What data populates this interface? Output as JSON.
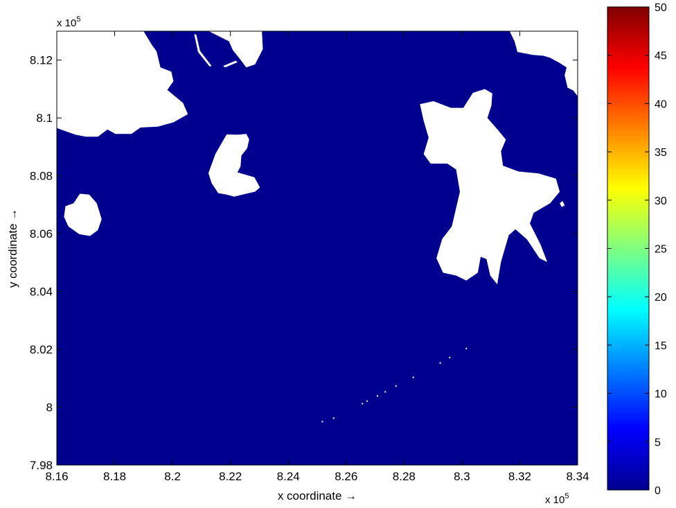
{
  "chart_data": [
    {
      "type": "heatmap",
      "title": "",
      "xlabel": "x coordinate →",
      "ylabel": "y coordinate →",
      "x_multiplier": "x 10",
      "x_multiplier_exp": "5",
      "y_multiplier": "x 10",
      "y_multiplier_exp": "5",
      "xlim": [
        8.16,
        8.34
      ],
      "ylim": [
        7.98,
        8.13
      ],
      "x_ticks": [
        "8.16",
        "8.18",
        "8.2",
        "8.22",
        "8.24",
        "8.26",
        "8.28",
        "8.3",
        "8.32",
        "8.34"
      ],
      "x_tick_values": [
        8.16,
        8.18,
        8.2,
        8.22,
        8.24,
        8.26,
        8.28,
        8.3,
        8.32,
        8.34
      ],
      "y_ticks": [
        "7.98",
        "8",
        "8.02",
        "8.04",
        "8.06",
        "8.08",
        "8.1",
        "8.12"
      ],
      "y_tick_values": [
        7.98,
        8.0,
        8.02,
        8.04,
        8.06,
        8.08,
        8.1,
        8.12
      ],
      "field_value": 0,
      "field_color": "#00008f",
      "land_color": "#ffffff",
      "colorbar": {
        "min": 0,
        "max": 50,
        "ticks": [
          "0",
          "5",
          "10",
          "15",
          "20",
          "25",
          "30",
          "35",
          "40",
          "45",
          "50"
        ],
        "tick_values": [
          0,
          5,
          10,
          15,
          20,
          25,
          30,
          35,
          40,
          45,
          50
        ],
        "colormap": "jet"
      },
      "land_masses": [
        {
          "name": "northwest-coast",
          "points": [
            [
              8.16,
              8.13
            ],
            [
              8.19,
              8.13
            ],
            [
              8.1927,
              8.1255
            ],
            [
              8.1945,
              8.123
            ],
            [
              8.1958,
              8.1175
            ],
            [
              8.1996,
              8.116
            ],
            [
              8.2003,
              8.1127
            ],
            [
              8.1982,
              8.1097
            ],
            [
              8.2036,
              8.1052
            ],
            [
              8.2053,
              8.1013
            ],
            [
              8.2003,
              8.0985
            ],
            [
              8.1949,
              8.097
            ],
            [
              8.1889,
              8.0967
            ],
            [
              8.1858,
              8.0945
            ],
            [
              8.1803,
              8.0945
            ],
            [
              8.1775,
              8.096
            ],
            [
              8.1742,
              8.0935
            ],
            [
              8.17,
              8.0935
            ],
            [
              8.1665,
              8.0942
            ],
            [
              8.1628,
              8.0955
            ],
            [
              8.16,
              8.0965
            ]
          ]
        },
        {
          "name": "north-land-2",
          "points": [
            [
              8.2125,
              8.13
            ],
            [
              8.2309,
              8.13
            ],
            [
              8.2312,
              8.1238
            ],
            [
              8.2285,
              8.1185
            ],
            [
              8.2255,
              8.1175
            ],
            [
              8.2232,
              8.1205
            ],
            [
              8.2208,
              8.1235
            ],
            [
              8.2195,
              8.1265
            ]
          ]
        },
        {
          "name": "north-sliver",
          "points": [
            [
              8.2075,
              8.129
            ],
            [
              8.2082,
              8.1288
            ],
            [
              8.2095,
              8.1232
            ],
            [
              8.2135,
              8.118
            ],
            [
              8.2128,
              8.1178
            ],
            [
              8.2088,
              8.1228
            ]
          ]
        },
        {
          "name": "north-islet",
          "points": [
            [
              8.2175,
              8.118
            ],
            [
              8.2218,
              8.1198
            ],
            [
              8.2225,
              8.1193
            ],
            [
              8.2182,
              8.1175
            ]
          ]
        },
        {
          "name": "northeast-coast",
          "points": [
            [
              8.3165,
              8.13
            ],
            [
              8.34,
              8.13
            ],
            [
              8.34,
              8.1075
            ],
            [
              8.3385,
              8.1095
            ],
            [
              8.3365,
              8.1105
            ],
            [
              8.3355,
              8.1148
            ],
            [
              8.3362,
              8.1175
            ],
            [
              8.3335,
              8.1192
            ],
            [
              8.3305,
              8.1208
            ],
            [
              8.3282,
              8.1215
            ],
            [
              8.3245,
              8.1218
            ],
            [
              8.3192,
              8.1228
            ],
            [
              8.3182,
              8.1265
            ]
          ]
        },
        {
          "name": "central-island",
          "points": [
            [
              8.2197,
              8.0803
            ],
            [
              8.2222,
              8.0808
            ],
            [
              8.2235,
              8.0832
            ],
            [
              8.2238,
              8.087
            ],
            [
              8.2258,
              8.0895
            ],
            [
              8.2265,
              8.0926
            ],
            [
              8.2255,
              8.0945
            ],
            [
              8.2225,
              8.0942
            ],
            [
              8.2187,
              8.0943
            ],
            [
              8.2172,
              8.0917
            ],
            [
              8.2148,
              8.0875
            ],
            [
              8.2124,
              8.0809
            ],
            [
              8.2135,
              8.0775
            ],
            [
              8.2158,
              8.074
            ],
            [
              8.2187,
              8.0735
            ],
            [
              8.2213,
              8.0728
            ],
            [
              8.2255,
              8.0738
            ],
            [
              8.2285,
              8.0745
            ],
            [
              8.2302,
              8.076
            ],
            [
              8.2283,
              8.0795
            ],
            [
              8.2225,
              8.0812
            ]
          ]
        },
        {
          "name": "west-island",
          "points": [
            [
              8.1625,
              8.0658
            ],
            [
              8.164,
              8.0625
            ],
            [
              8.1678,
              8.0598
            ],
            [
              8.1715,
              8.0592
            ],
            [
              8.1742,
              8.0612
            ],
            [
              8.1755,
              8.065
            ],
            [
              8.1738,
              8.0705
            ],
            [
              8.1712,
              8.0735
            ],
            [
              8.168,
              8.0738
            ],
            [
              8.1658,
              8.0705
            ],
            [
              8.163,
              8.0695
            ]
          ]
        },
        {
          "name": "east-island",
          "points": [
            [
              8.3005,
              8.1035
            ],
            [
              8.3038,
              8.1087
            ],
            [
              8.3079,
              8.11
            ],
            [
              8.3105,
              8.1085
            ],
            [
              8.3102,
              8.1043
            ],
            [
              8.3088,
              8.1
            ],
            [
              8.3125,
              8.0958
            ],
            [
              8.3152,
              8.0925
            ],
            [
              8.3135,
              8.0885
            ],
            [
              8.3142,
              8.0835
            ],
            [
              8.3195,
              8.0815
            ],
            [
              8.3265,
              8.0808
            ],
            [
              8.3325,
              8.079
            ],
            [
              8.3338,
              8.0745
            ],
            [
              8.3305,
              8.0705
            ],
            [
              8.3248,
              8.0672
            ],
            [
              8.3235,
              8.0635
            ],
            [
              8.3272,
              8.0562
            ],
            [
              8.3295,
              8.0502
            ],
            [
              8.3268,
              8.0515
            ],
            [
              8.3225,
              8.058
            ],
            [
              8.3185,
              8.0615
            ],
            [
              8.3162,
              8.0595
            ],
            [
              8.3135,
              8.0502
            ],
            [
              8.3122,
              8.0425
            ],
            [
              8.3098,
              8.0455
            ],
            [
              8.3085,
              8.0512
            ],
            [
              8.3065,
              8.052
            ],
            [
              8.3055,
              8.0465
            ],
            [
              8.3015,
              8.0438
            ],
            [
              8.298,
              8.0455
            ],
            [
              8.2935,
              8.0465
            ],
            [
              8.2912,
              8.0515
            ],
            [
              8.2932,
              8.0582
            ],
            [
              8.2965,
              8.0625
            ],
            [
              8.2993,
              8.0745
            ],
            [
              8.298,
              8.0822
            ],
            [
              8.295,
              8.0842
            ],
            [
              8.2892,
              8.0842
            ],
            [
              8.2868,
              8.0875
            ],
            [
              8.2885,
              8.0932
            ],
            [
              8.2868,
              8.099
            ],
            [
              8.2855,
              8.1048
            ],
            [
              8.2902,
              8.1058
            ],
            [
              8.2962,
              8.1035
            ]
          ]
        },
        {
          "name": "east-islet-1",
          "points": [
            [
              8.3088,
              8.0935
            ],
            [
              8.3102,
              8.0952
            ],
            [
              8.3118,
              8.095
            ],
            [
              8.3114,
              8.0932
            ]
          ]
        },
        {
          "name": "east-islet-2",
          "points": [
            [
              8.3338,
              8.0705
            ],
            [
              8.3348,
              8.0713
            ],
            [
              8.3355,
              8.0698
            ],
            [
              8.3345,
              8.0692
            ]
          ]
        }
      ],
      "speckles": [
        [
          8.2518,
          7.995
        ],
        [
          8.2557,
          7.9962
        ],
        [
          8.2656,
          8.0012
        ],
        [
          8.2672,
          8.0021
        ],
        [
          8.2708,
          8.0039
        ],
        [
          8.2735,
          8.0053
        ],
        [
          8.2772,
          8.0073
        ],
        [
          8.2832,
          8.0103
        ],
        [
          8.2925,
          8.0153
        ],
        [
          8.2958,
          8.0172
        ],
        [
          8.3015,
          8.0203
        ]
      ]
    }
  ]
}
